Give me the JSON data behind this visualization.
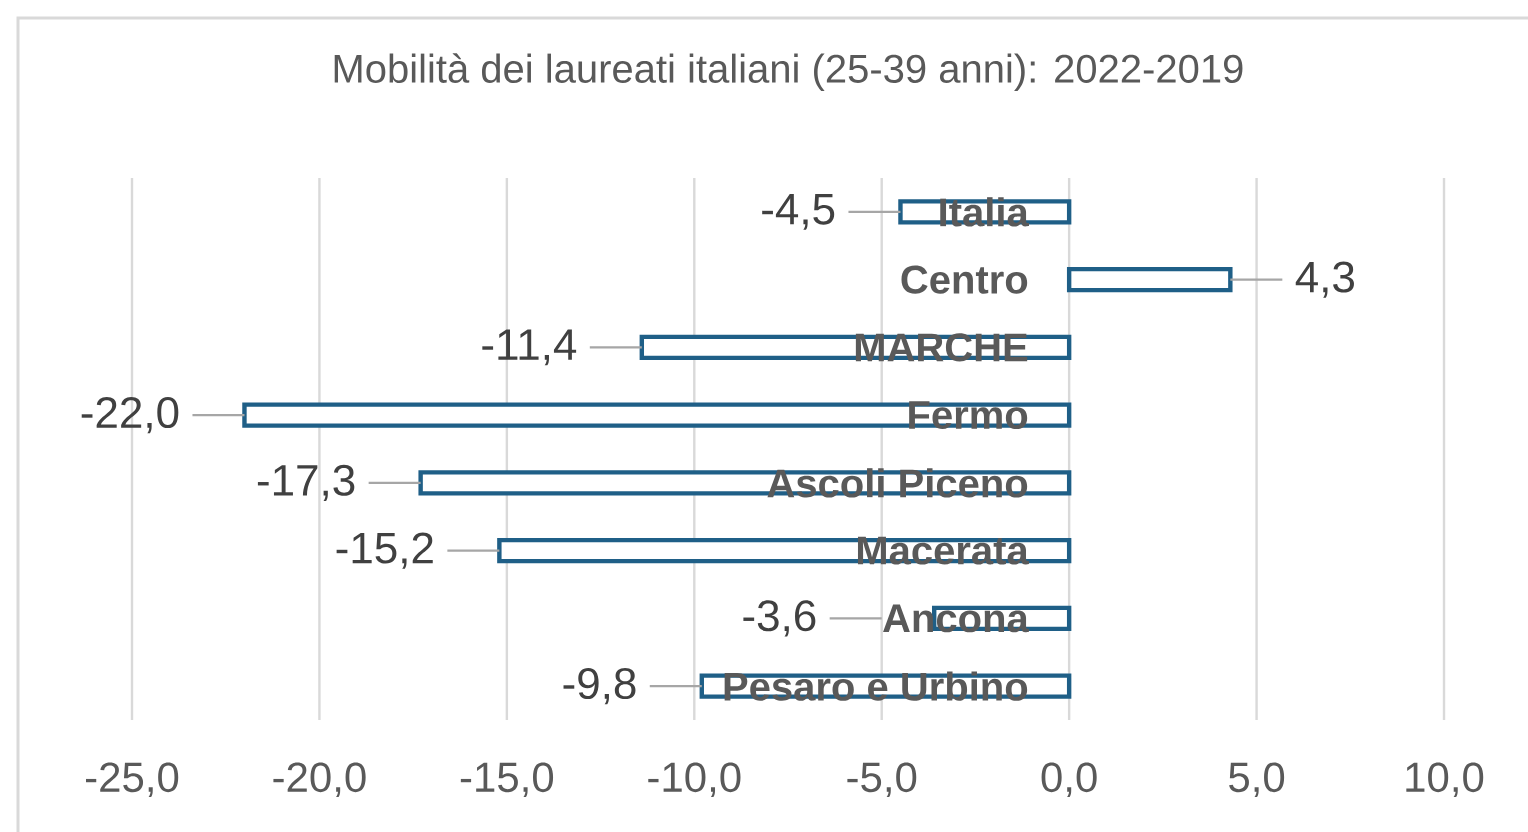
{
  "chart_data": {
    "type": "bar",
    "orientation": "horizontal",
    "title": "Mobilità dei laureati italiani (25-39 anni): 2022-2019",
    "categories": [
      "Italia",
      "Centro",
      "MARCHE",
      "Fermo",
      "Ascoli Piceno",
      "Macerata",
      "Ancona",
      "Pesaro e Urbino"
    ],
    "values": [
      -4.5,
      4.3,
      -11.4,
      -22.0,
      -17.3,
      -15.2,
      -3.6,
      -9.8
    ],
    "value_labels": [
      "-4,5",
      "4,3",
      "-11,4",
      "-22,0",
      "-17,3",
      "-15,2",
      "-3,6",
      "-9,8"
    ],
    "color": "#1f5f87",
    "xlim": [
      -25,
      10
    ],
    "xticks": [
      {
        "value": -25,
        "label": "-25,0"
      },
      {
        "value": -20,
        "label": "-20,0"
      },
      {
        "value": -15,
        "label": "-15,0"
      },
      {
        "value": -10,
        "label": "-10,0"
      },
      {
        "value": -5,
        "label": "-5,0"
      },
      {
        "value": 0,
        "label": "0,0"
      },
      {
        "value": 5,
        "label": "5,0"
      },
      {
        "value": 10,
        "label": "10,0"
      }
    ],
    "grid": "x"
  }
}
